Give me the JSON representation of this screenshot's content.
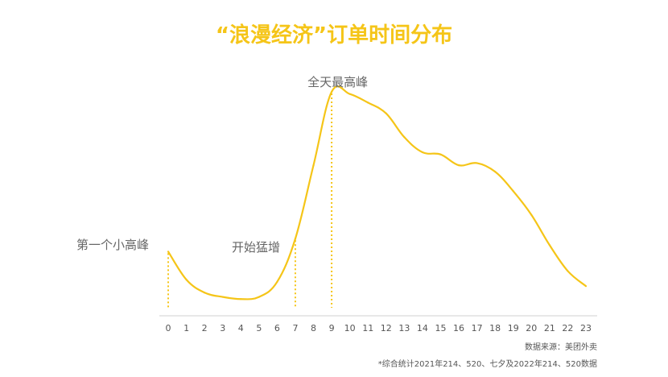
{
  "chart_data": {
    "type": "line",
    "title": "“浪漫经济”订单时间分布",
    "xlabel": "",
    "ylabel": "",
    "categories": [
      "0",
      "1",
      "2",
      "3",
      "4",
      "5",
      "6",
      "7",
      "8",
      "9",
      "10",
      "11",
      "12",
      "13",
      "14",
      "15",
      "16",
      "17",
      "18",
      "19",
      "20",
      "21",
      "22",
      "23"
    ],
    "series": [
      {
        "values": [
          26,
          13,
          7,
          5,
          4,
          5,
          12,
          32,
          66,
          100,
          99,
          95,
          90,
          79,
          72,
          71,
          66,
          67,
          63,
          54,
          43,
          29,
          17,
          10
        ]
      }
    ],
    "ylim": [
      0,
      100
    ],
    "grid": false,
    "annotations": [
      {
        "x": "0",
        "text": "第一个小高峰"
      },
      {
        "x": "7",
        "text": "开始猛增"
      },
      {
        "x": "9",
        "text": "全天最高峰"
      }
    ]
  },
  "footer": {
    "source": "数据来源：美团外卖",
    "note": "*综合统计2021年214、520、七夕及2022年214、520数据"
  },
  "colors": {
    "accent": "#F5C518",
    "title": "#F5C518",
    "text": "#666666",
    "axis": "#999999"
  }
}
